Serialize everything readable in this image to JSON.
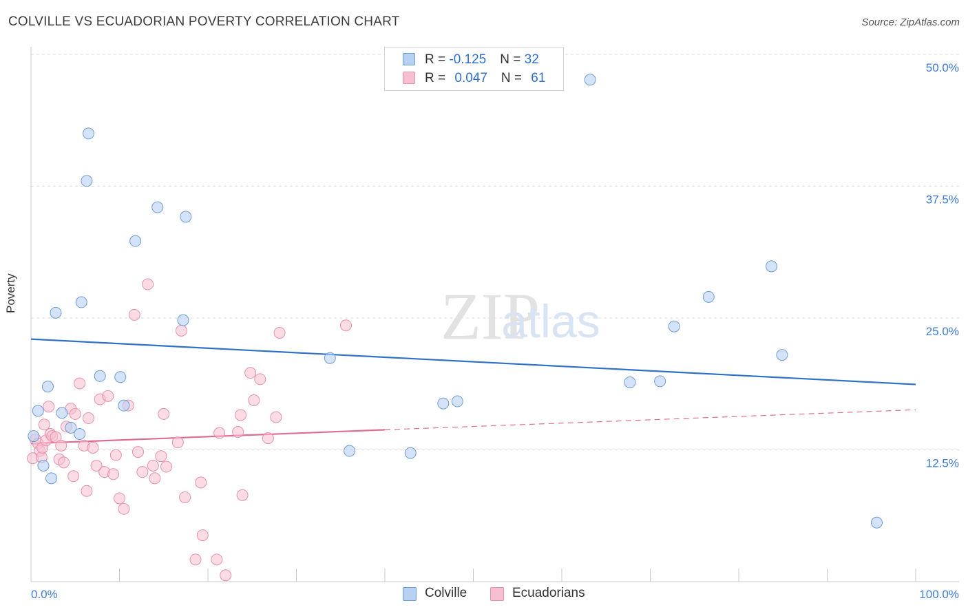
{
  "header": {
    "title": "COLVILLE VS ECUADORIAN POVERTY CORRELATION CHART",
    "source": "Source: ZipAtlas.com"
  },
  "legend": {
    "colville": {
      "r_label": "R = ",
      "r_value": "-0.125",
      "n_label": "N = ",
      "n_value": "32"
    },
    "ecuadorians": {
      "r_label": "R = ",
      "r_value": "0.047",
      "n_label": "N = ",
      "n_value": "61"
    }
  },
  "bottom_legend": {
    "colville": "Colville",
    "ecuadorians": "Ecuadorians"
  },
  "watermark": {
    "zip": "ZIP",
    "atlas": "atlas"
  },
  "colors": {
    "colville_fill": "#b7d1f2",
    "colville_stroke": "#6e9bd9",
    "colville_line": "#2f70c9",
    "ecuadorians_fill": "#f7c0d0",
    "ecuadorians_stroke": "#e690ab",
    "ecuadorians_line": "#e06b95",
    "tick_label": "#3d7bd6",
    "grid": "#dcdcdc"
  },
  "chart_data": {
    "type": "scatter",
    "title": "COLVILLE VS ECUADORIAN POVERTY CORRELATION CHART",
    "xlabel": "",
    "ylabel": "Poverty",
    "xlim": [
      0,
      100
    ],
    "ylim": [
      0,
      50
    ],
    "x_tick_labels": [
      "0.0%",
      "100.0%"
    ],
    "y_tick_labels": [
      "12.5%",
      "25.0%",
      "37.5%",
      "50.0%"
    ],
    "y_ticks": [
      12.5,
      25.0,
      37.5,
      50.0
    ],
    "grid": true,
    "legend_position": "top-center",
    "series": [
      {
        "name": "Colville",
        "x": [
          0.3,
          0.8,
          1.4,
          1.9,
          2.3,
          2.8,
          3.5,
          4.5,
          5.5,
          5.7,
          6.3,
          6.5,
          7.8,
          10.1,
          10.5,
          11.8,
          14.3,
          17.2,
          17.5,
          33.8,
          36.0,
          42.9,
          46.6,
          48.2,
          63.2,
          67.7,
          71.1,
          72.7,
          76.6,
          83.7,
          84.9,
          95.6
        ],
        "y": [
          13.8,
          16.2,
          11.0,
          18.5,
          9.8,
          25.5,
          16.0,
          14.6,
          14.0,
          26.5,
          38.0,
          42.5,
          19.5,
          19.4,
          16.7,
          32.3,
          35.5,
          24.8,
          34.6,
          21.2,
          12.4,
          12.2,
          16.9,
          17.1,
          47.6,
          18.9,
          19.0,
          24.2,
          27.0,
          29.9,
          21.5,
          5.6
        ]
      },
      {
        "name": "Ecuadorians",
        "x": [
          0.2,
          0.5,
          0.8,
          1.0,
          1.2,
          1.3,
          1.5,
          1.7,
          2.0,
          2.2,
          2.4,
          2.8,
          3.2,
          3.4,
          3.7,
          4.0,
          4.5,
          4.8,
          5.0,
          5.5,
          6.0,
          6.3,
          6.5,
          7.0,
          7.4,
          7.8,
          8.3,
          8.7,
          9.3,
          9.6,
          10.0,
          10.5,
          11.0,
          11.7,
          12.1,
          12.6,
          13.2,
          13.8,
          14.0,
          14.7,
          15.0,
          15.3,
          16.6,
          17.0,
          17.4,
          18.6,
          19.2,
          19.4,
          21.0,
          21.3,
          22.0,
          23.4,
          23.7,
          23.9,
          24.8,
          25.2,
          25.9,
          26.8,
          27.7,
          28.1,
          35.6
        ],
        "y": [
          11.7,
          13.5,
          13.1,
          12.4,
          11.8,
          12.7,
          14.9,
          13.4,
          16.6,
          14.0,
          13.8,
          13.7,
          11.6,
          12.9,
          11.3,
          14.7,
          16.4,
          10.0,
          15.9,
          18.8,
          12.9,
          8.6,
          15.5,
          12.7,
          11.0,
          17.3,
          10.4,
          17.6,
          10.2,
          12.0,
          7.9,
          6.9,
          16.7,
          25.3,
          12.3,
          10.4,
          28.2,
          11.0,
          9.8,
          11.9,
          15.9,
          10.9,
          13.2,
          23.8,
          8.0,
          2.1,
          9.4,
          4.4,
          2.1,
          14.1,
          0.6,
          14.2,
          15.8,
          8.2,
          19.8,
          17.2,
          19.2,
          13.6,
          15.6,
          23.6,
          24.3
        ]
      }
    ],
    "trend_lines": [
      {
        "series": "Colville",
        "x": [
          0,
          100
        ],
        "y": [
          23.0,
          18.7
        ],
        "style": "solid"
      },
      {
        "series": "Ecuadorians",
        "x": [
          0,
          40,
          100
        ],
        "y": [
          13.1,
          14.4,
          16.3
        ],
        "style": "solid-then-dashed"
      }
    ]
  }
}
